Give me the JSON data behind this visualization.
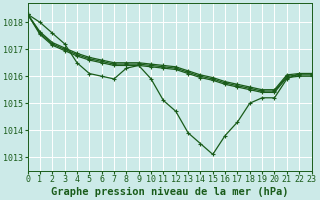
{
  "title": "Graphe pression niveau de la mer (hPa)",
  "background_color": "#cceae8",
  "grid_color": "#ffffff",
  "line_color": "#1a5c1a",
  "xlim": [
    0,
    23
  ],
  "ylim": [
    1012.5,
    1018.7
  ],
  "yticks": [
    1013,
    1014,
    1015,
    1016,
    1017,
    1018
  ],
  "xticks": [
    0,
    1,
    2,
    3,
    4,
    5,
    6,
    7,
    8,
    9,
    10,
    11,
    12,
    13,
    14,
    15,
    16,
    17,
    18,
    19,
    20,
    21,
    22,
    23
  ],
  "series": {
    "sharp": [
      1018.3,
      1018.0,
      1017.6,
      1017.2,
      1016.5,
      1016.1,
      1016.0,
      1015.9,
      1016.3,
      1016.4,
      1015.9,
      1015.1,
      1014.7,
      1013.9,
      1013.5,
      1013.1,
      1013.8,
      1014.3,
      1015.0,
      1015.2,
      1015.2,
      1015.9,
      1016.1,
      1016.1
    ],
    "smooth1": [
      1018.3,
      1017.65,
      1017.25,
      1017.05,
      1016.85,
      1016.7,
      1016.6,
      1016.5,
      1016.5,
      1016.5,
      1016.45,
      1016.4,
      1016.35,
      1016.2,
      1016.05,
      1015.95,
      1015.8,
      1015.7,
      1015.6,
      1015.5,
      1015.5,
      1016.05,
      1016.1,
      1016.1
    ],
    "smooth2": [
      1018.3,
      1017.6,
      1017.2,
      1017.0,
      1016.8,
      1016.65,
      1016.55,
      1016.45,
      1016.45,
      1016.45,
      1016.4,
      1016.35,
      1016.3,
      1016.15,
      1016.0,
      1015.9,
      1015.75,
      1015.65,
      1015.55,
      1015.45,
      1015.45,
      1016.0,
      1016.05,
      1016.05
    ],
    "smooth3": [
      1018.3,
      1017.55,
      1017.15,
      1016.95,
      1016.75,
      1016.6,
      1016.5,
      1016.4,
      1016.4,
      1016.4,
      1016.35,
      1016.3,
      1016.25,
      1016.1,
      1015.95,
      1015.85,
      1015.7,
      1015.6,
      1015.5,
      1015.4,
      1015.4,
      1015.95,
      1016.0,
      1016.0
    ]
  },
  "marker": "+",
  "markersize": 3.5,
  "linewidth": 0.9,
  "title_fontsize": 7.5,
  "tick_fontsize": 6.0
}
